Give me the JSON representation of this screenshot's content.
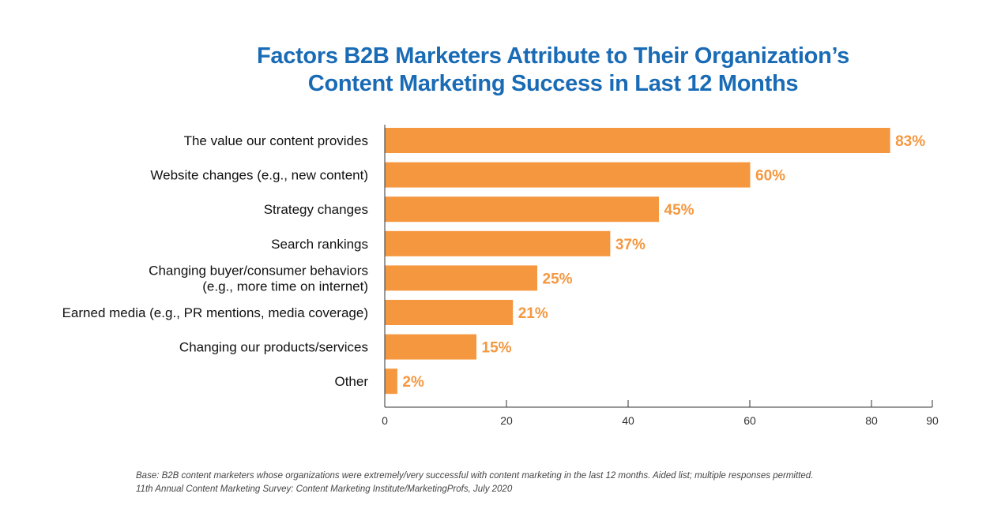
{
  "chart_data": {
    "type": "bar",
    "orientation": "horizontal",
    "title_lines": [
      "Factors B2B Marketers Attribute to Their Organization’s",
      "Content Marketing Success in Last 12 Months"
    ],
    "categories": [
      [
        "The value our content provides"
      ],
      [
        "Website changes (e.g., new content)"
      ],
      [
        "Strategy changes"
      ],
      [
        "Search rankings"
      ],
      [
        "Changing buyer/consumer behaviors",
        "(e.g., more time on internet)"
      ],
      [
        "Earned media (e.g., PR mentions, media coverage)"
      ],
      [
        "Changing our products/services"
      ],
      [
        "Other"
      ]
    ],
    "values": [
      83,
      60,
      45,
      37,
      25,
      21,
      15,
      2
    ],
    "value_labels": [
      "83%",
      "60%",
      "45%",
      "37%",
      "25%",
      "21%",
      "15%",
      "2%"
    ],
    "xlim": [
      0,
      90
    ],
    "xticks": [
      0,
      20,
      40,
      60,
      80,
      90
    ],
    "grid": false,
    "colors": {
      "bar": "#f5973f",
      "value_label": "#f5973f",
      "title": "#1a6bb5",
      "axis": "#333333"
    }
  },
  "footnote": {
    "line1": "Base: B2B content marketers whose organizations were extremely/very successful with content marketing in the last 12 months. Aided list; multiple responses permitted.",
    "line2": "11th Annual Content Marketing Survey: Content Marketing Institute/MarketingProfs, July 2020"
  }
}
